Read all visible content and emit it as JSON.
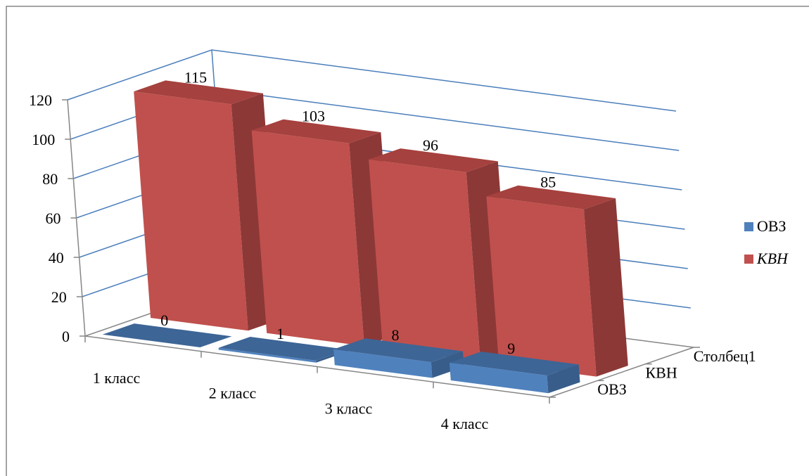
{
  "chart_data": {
    "type": "bar",
    "subtype": "3d-column",
    "title": "",
    "xlabel": "",
    "ylabel": "",
    "ylim": [
      0,
      120
    ],
    "y_ticks": [
      "0",
      "20",
      "40",
      "60",
      "80",
      "100",
      "120"
    ],
    "categories": [
      "1 класс",
      "2 класс",
      "3 класс",
      "4 класс"
    ],
    "depth_labels": [
      "ОВЗ",
      "КВН",
      "Столбец1"
    ],
    "grid": true,
    "legend_position": "right",
    "series": [
      {
        "name": "ОВЗ",
        "legend_style": "normal",
        "color": "#4f81bd",
        "color_side": "#385d8a",
        "color_top": "#3d6596",
        "values": [
          0,
          1,
          8,
          9
        ],
        "value_labels": [
          "0",
          "1",
          "8",
          "9"
        ]
      },
      {
        "name": "КВН",
        "legend_style": "italic",
        "color": "#c0504d",
        "color_side": "#8c3836",
        "color_top": "#a5413e",
        "values": [
          115,
          103,
          96,
          85
        ],
        "value_labels": [
          "115",
          "103",
          "96",
          "85"
        ]
      }
    ]
  }
}
